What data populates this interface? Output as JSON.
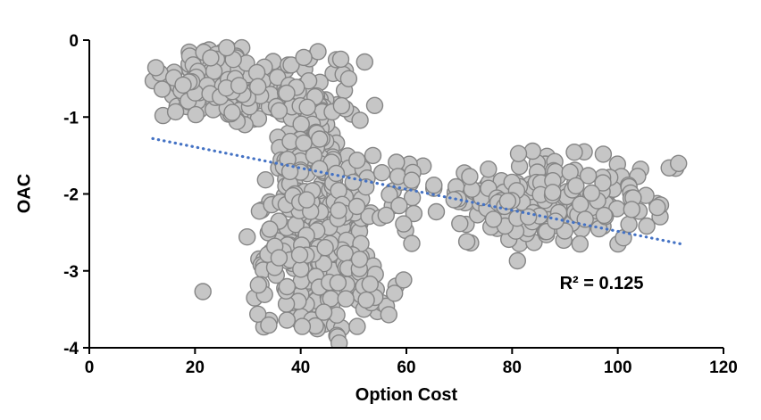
{
  "chart_data": {
    "type": "scatter",
    "title": "",
    "xlabel": "Option Cost",
    "ylabel": "OAC",
    "xlim": [
      0,
      120
    ],
    "ylim": [
      -4,
      0
    ],
    "x_ticks": [
      0,
      20,
      40,
      60,
      80,
      100,
      120
    ],
    "y_ticks": [
      0,
      -1,
      -2,
      -3,
      -4
    ],
    "grid": false,
    "legend": false,
    "annotation": {
      "text": "R² = 0.125",
      "x": 89,
      "y": -3.2
    },
    "marker": {
      "fill": "#C6C6C6",
      "stroke": "#858585",
      "radius_px": 9
    },
    "trendline": {
      "style": "dotted",
      "color": "#4472C4",
      "x1": 12,
      "y1": -1.28,
      "x2": 112,
      "y2": -2.65,
      "r_squared": 0.125
    },
    "points": [
      [
        21.5,
        -3.27
      ],
      [
        81,
        -2.87
      ],
      [
        54,
        -0.85
      ]
    ],
    "point_clusters": [
      {
        "count": 150,
        "cx": 25,
        "cy": -0.6,
        "sx": 14,
        "sy": 0.6,
        "xmin": 12,
        "xmax": 40,
        "ymin": -1.35,
        "ymax": -0.1
      },
      {
        "count": 85,
        "cx": 43,
        "cy": -0.85,
        "sx": 10,
        "sy": 0.75,
        "xmin": 33,
        "xmax": 54,
        "ymin": -1.75,
        "ymax": -0.15
      },
      {
        "count": 45,
        "cx": 41,
        "cy": -1.55,
        "sx": 7,
        "sy": 0.5
      },
      {
        "count": 300,
        "cx": 42.5,
        "cy": -2.7,
        "sx": 13,
        "sy": 1.35,
        "xmin": 29,
        "xmax": 58,
        "ymin": -3.95,
        "ymax": -1.5
      },
      {
        "count": 30,
        "cx": 52,
        "cy": -3.2,
        "sx": 8,
        "sy": 0.45,
        "xmin": 44,
        "xmax": 60,
        "ymin": -3.6,
        "ymax": -2.85
      },
      {
        "count": 190,
        "cx": 88,
        "cy": -2.05,
        "sx": 27,
        "sy": 0.7,
        "xmin": 61.5,
        "xmax": 111.5,
        "ymin": -2.65,
        "ymax": -1.42
      },
      {
        "count": 20,
        "cx": 58.5,
        "cy": -2.1,
        "sx": 5,
        "sy": 0.75,
        "xmin": 54,
        "xmax": 64,
        "ymin": -2.7,
        "ymax": -1.55
      }
    ],
    "seed": 42
  }
}
